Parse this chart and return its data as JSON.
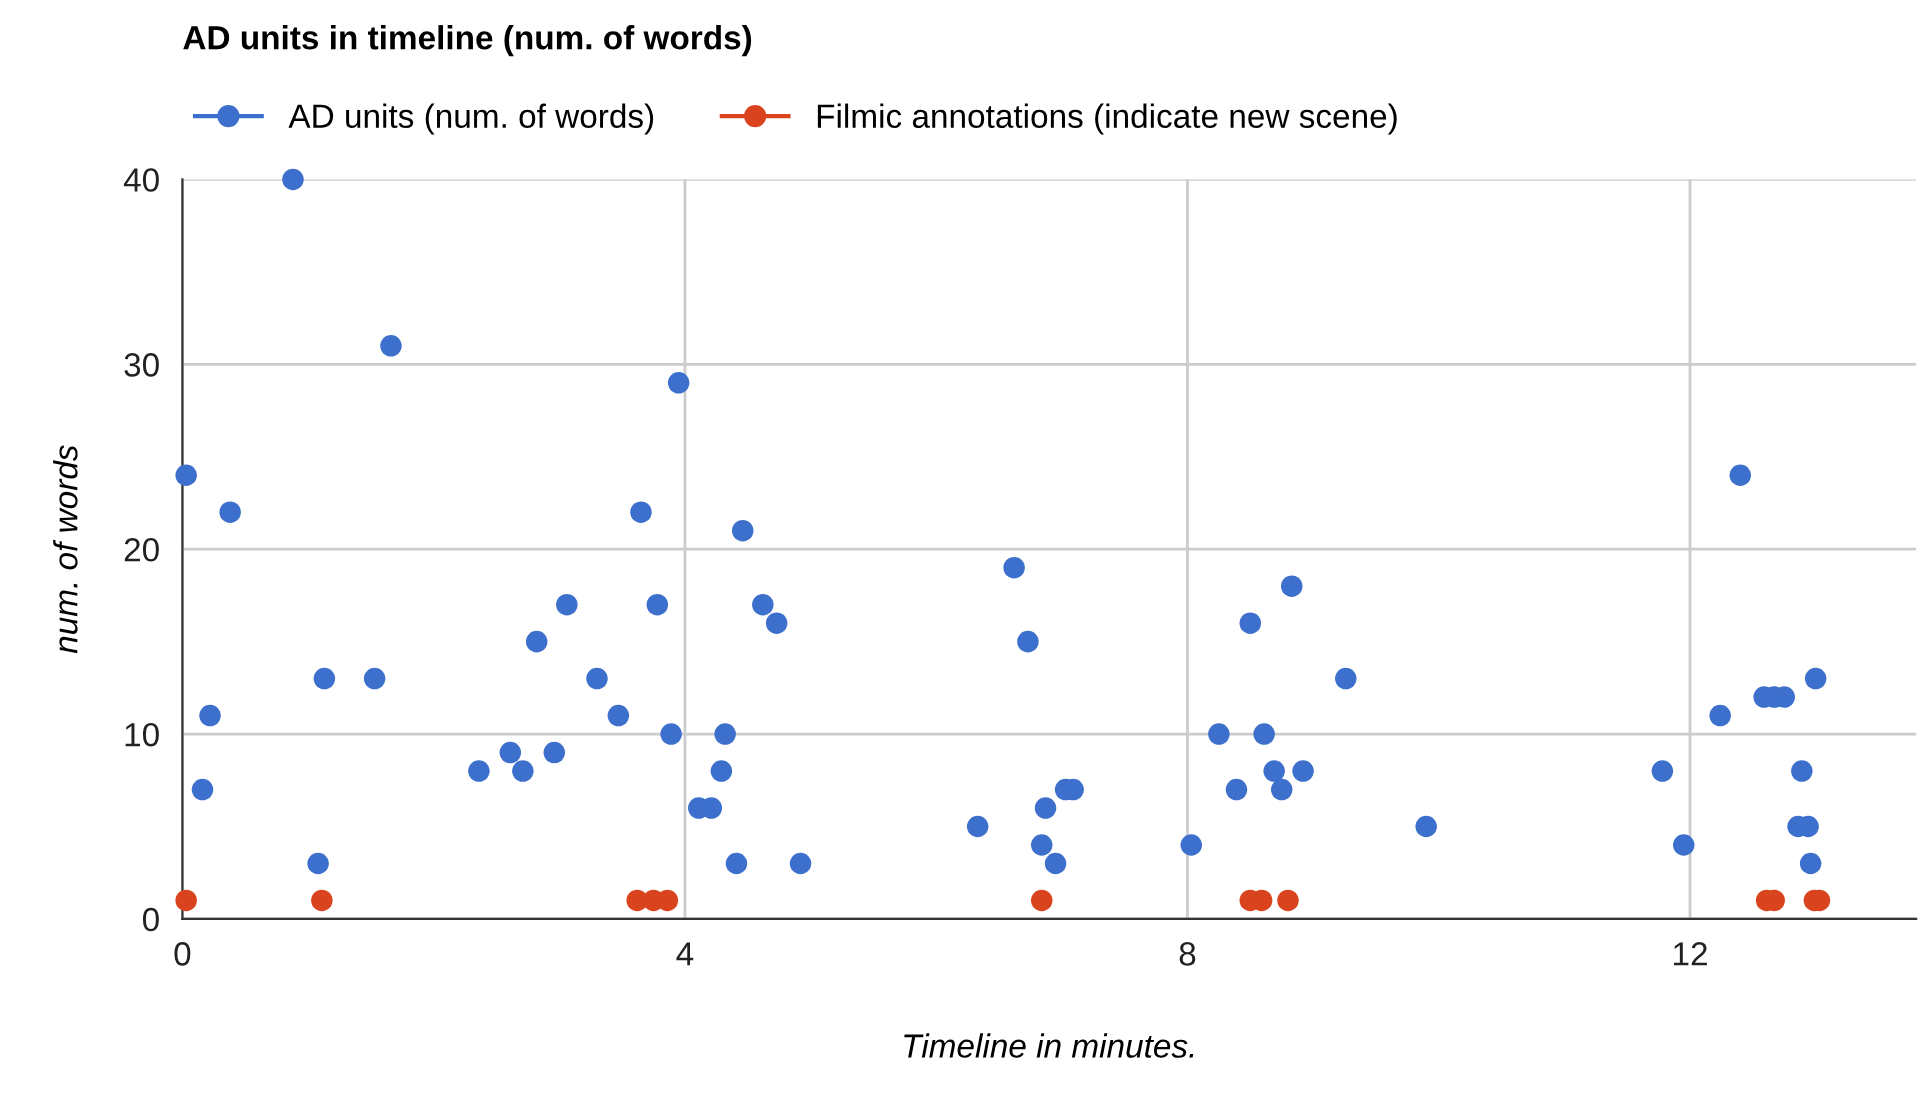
{
  "chart_data": {
    "type": "scatter",
    "title": "AD units in timeline (num. of words)",
    "xlabel": "Timeline in minutes.",
    "ylabel": "num. of words",
    "xlim": [
      0,
      13.8
    ],
    "xticks": [
      0,
      4,
      8,
      12
    ],
    "ylim": [
      0,
      40
    ],
    "yticks": [
      0,
      10,
      20,
      30,
      40
    ],
    "grid": true,
    "legend": "top left",
    "marker": "circle",
    "series": [
      {
        "name": "AD units (num. of words)",
        "color": "#3d6fcc",
        "x": [
          0.03,
          0.16,
          0.22,
          0.38,
          0.88,
          1.08,
          1.13,
          1.53,
          1.66,
          2.36,
          2.61,
          2.71,
          2.82,
          2.96,
          3.06,
          3.3,
          3.47,
          3.65,
          3.78,
          3.89,
          3.95,
          4.11,
          4.21,
          4.29,
          4.32,
          4.41,
          4.46,
          4.62,
          4.73,
          4.92,
          6.33,
          6.62,
          6.73,
          6.84,
          6.87,
          6.95,
          7.03,
          7.09,
          8.03,
          8.25,
          8.39,
          8.5,
          8.61,
          8.69,
          8.75,
          8.83,
          8.92,
          9.26,
          9.9,
          11.78,
          11.95,
          12.24,
          12.4,
          12.59,
          12.67,
          12.75,
          12.86,
          12.89,
          12.94,
          12.96,
          13.0
        ],
        "values": [
          24,
          7,
          11,
          22,
          40,
          3,
          13,
          13,
          31,
          8,
          9,
          8,
          15,
          9,
          17,
          13,
          11,
          22,
          17,
          10,
          29,
          6,
          6,
          8,
          10,
          3,
          21,
          17,
          16,
          3,
          5,
          19,
          15,
          4,
          6,
          3,
          7,
          7,
          4,
          10,
          7,
          16,
          10,
          8,
          7,
          18,
          8,
          13,
          5,
          8,
          4,
          11,
          24,
          12,
          12,
          12,
          5,
          8,
          5,
          3,
          13
        ]
      },
      {
        "name": "Filmic annotations (indicate new scene)",
        "color": "#d9441e",
        "x": [
          0.03,
          1.11,
          3.62,
          3.75,
          3.86,
          6.84,
          8.5,
          8.59,
          8.8,
          12.61,
          12.67,
          12.99,
          13.03
        ],
        "values": [
          1,
          1,
          1,
          1,
          1,
          1,
          1,
          1,
          1,
          1,
          1,
          1,
          1
        ]
      }
    ]
  }
}
